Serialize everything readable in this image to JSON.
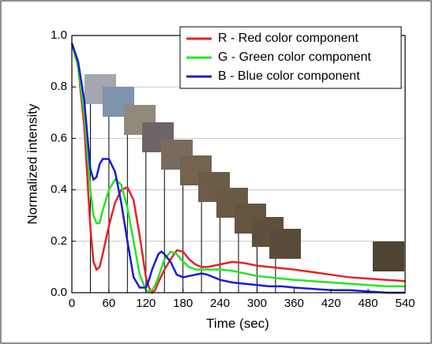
{
  "chart_data": {
    "type": "line",
    "x_label": "Time (sec)",
    "y_label": "Normalized intensity",
    "x": [
      0,
      10,
      20,
      30,
      35,
      40,
      45,
      50,
      60,
      70,
      80,
      90,
      100,
      110,
      120,
      125,
      130,
      135,
      140,
      145,
      150,
      160,
      170,
      180,
      190,
      200,
      210,
      220,
      240,
      260,
      280,
      300,
      320,
      340,
      360,
      390,
      420,
      450,
      480,
      510,
      540
    ],
    "series": [
      {
        "name": "R - Red color component",
        "color": "#e8202a",
        "values": [
          0.97,
          0.88,
          0.65,
          0.25,
          0.12,
          0.09,
          0.1,
          0.15,
          0.26,
          0.35,
          0.4,
          0.41,
          0.36,
          0.22,
          0.06,
          0.02,
          0,
          0.01,
          0.04,
          0.065,
          0.09,
          0.13,
          0.165,
          0.16,
          0.13,
          0.11,
          0.1,
          0.1,
          0.11,
          0.12,
          0.115,
          0.105,
          0.1,
          0.095,
          0.09,
          0.08,
          0.07,
          0.06,
          0.055,
          0.05,
          0.045
        ]
      },
      {
        "name": "G - Green color component",
        "color": "#22e622",
        "values": [
          0.97,
          0.88,
          0.7,
          0.4,
          0.3,
          0.27,
          0.27,
          0.32,
          0.4,
          0.44,
          0.42,
          0.33,
          0.2,
          0.07,
          0.01,
          0.005,
          0.01,
          0.03,
          0.06,
          0.095,
          0.13,
          0.16,
          0.15,
          0.12,
          0.1,
          0.09,
          0.09,
          0.09,
          0.09,
          0.085,
          0.075,
          0.065,
          0.06,
          0.055,
          0.05,
          0.045,
          0.04,
          0.035,
          0.03,
          0.025,
          0.025
        ]
      },
      {
        "name": "B - Blue color component",
        "color": "#1a1adb",
        "values": [
          0.97,
          0.9,
          0.75,
          0.48,
          0.44,
          0.45,
          0.5,
          0.52,
          0.52,
          0.47,
          0.35,
          0.2,
          0.06,
          0.02,
          0.02,
          0.05,
          0.09,
          0.12,
          0.15,
          0.16,
          0.15,
          0.12,
          0.07,
          0.06,
          0.065,
          0.07,
          0.075,
          0.07,
          0.05,
          0.04,
          0.035,
          0.03,
          0.025,
          0.025,
          0.02,
          0.015,
          0.01,
          0.01,
          0.005,
          0,
          0
        ]
      }
    ],
    "xlim": [
      0,
      540
    ],
    "xticks": [
      0,
      60,
      120,
      180,
      240,
      300,
      360,
      420,
      480,
      540
    ],
    "ylim": [
      0,
      1
    ],
    "yticks": [
      {
        "value": 0,
        "label": "0.0"
      },
      {
        "value": 0.2,
        "label": "0.2"
      },
      {
        "value": 0.4,
        "label": "0.4"
      },
      {
        "value": 0.6,
        "label": "0.6"
      },
      {
        "value": 0.8,
        "label": "0.8"
      },
      {
        "value": 1,
        "label": "1.0"
      }
    ],
    "grid": true
  }
}
